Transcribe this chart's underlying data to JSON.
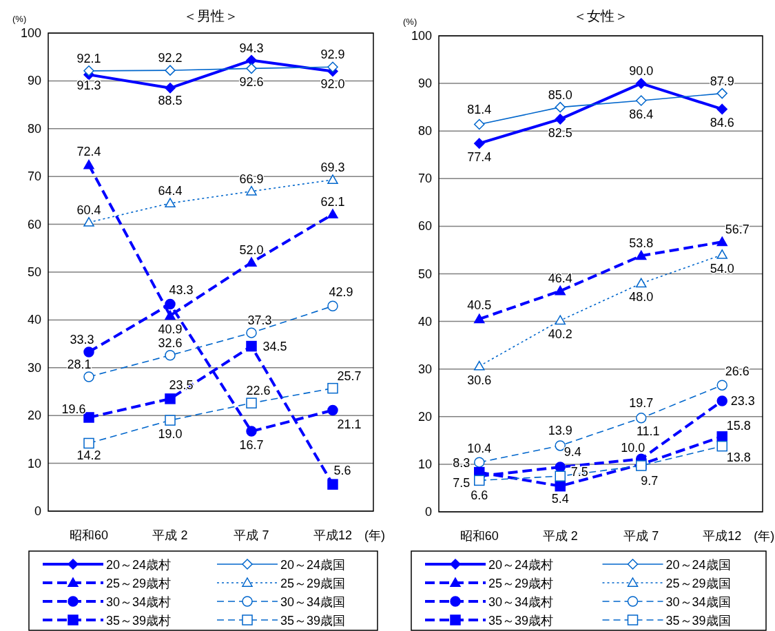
{
  "chart_data": [
    {
      "type": "line",
      "title": "＜男性＞",
      "ylabel": "(%)",
      "xlabel": "(年)",
      "categories": [
        "昭和60",
        "平成 2",
        "平成 7",
        "平成12"
      ],
      "ylim": [
        0,
        100
      ],
      "yticks": [
        0,
        10,
        20,
        30,
        40,
        50,
        60,
        70,
        80,
        90,
        100
      ],
      "grid": "y",
      "legend": "bottom",
      "series": [
        {
          "name": "20～24歳村",
          "color": "#0000ff",
          "marker": "diamond",
          "line_style": "solid",
          "values": [
            91.3,
            88.5,
            94.3,
            92.0
          ],
          "value_labels": [
            "91.3",
            "88.5",
            "94.3",
            "92.0"
          ]
        },
        {
          "name": "20～24歳国",
          "color": "#0066cc",
          "marker": "diamond",
          "line_style": "solid",
          "values": [
            92.1,
            92.2,
            92.6,
            92.9
          ],
          "value_labels": [
            "92.1",
            "92.2",
            "92.6",
            "92.9"
          ]
        },
        {
          "name": "25～29歳村",
          "color": "#0000ff",
          "marker": "triangle",
          "line_style": "dashed",
          "values": [
            72.4,
            40.9,
            52.0,
            62.1
          ],
          "value_labels": [
            "72.4",
            "40.9",
            "52.0",
            "62.1"
          ]
        },
        {
          "name": "25～29歳国",
          "color": "#0066cc",
          "marker": "triangle",
          "line_style": "dotted",
          "values": [
            60.4,
            64.4,
            66.9,
            69.3
          ],
          "value_labels": [
            "60.4",
            "64.4",
            "66.9",
            "69.3"
          ]
        },
        {
          "name": "30～34歳村",
          "color": "#0000ff",
          "marker": "circle",
          "line_style": "dashed",
          "values": [
            33.3,
            43.3,
            16.7,
            21.1
          ],
          "value_labels": [
            "33.3",
            "43.3",
            "16.7",
            "21.1"
          ]
        },
        {
          "name": "30～34歳国",
          "color": "#0066cc",
          "marker": "circle",
          "line_style": "dashed",
          "values": [
            28.1,
            32.6,
            37.3,
            42.9
          ],
          "value_labels": [
            "28.1",
            "32.6",
            "37.3",
            "42.9"
          ]
        },
        {
          "name": "35～39歳村",
          "color": "#0000ff",
          "marker": "square",
          "line_style": "dashed",
          "values": [
            19.6,
            23.5,
            34.5,
            5.6
          ],
          "value_labels": [
            "19.6",
            "23.5",
            "34.5",
            "5.6"
          ]
        },
        {
          "name": "35～39歳国",
          "color": "#0066cc",
          "marker": "square",
          "line_style": "dashed",
          "values": [
            14.2,
            19.0,
            22.6,
            25.7
          ],
          "value_labels": [
            "14.2",
            "19.0",
            "22.6",
            "25.7"
          ]
        }
      ]
    },
    {
      "type": "line",
      "title": "＜女性＞",
      "ylabel": "(%)",
      "xlabel": "(年)",
      "categories": [
        "昭和60",
        "平成 2",
        "平成 7",
        "平成12"
      ],
      "ylim": [
        0,
        100
      ],
      "yticks": [
        0,
        10,
        20,
        30,
        40,
        50,
        60,
        70,
        80,
        90,
        100
      ],
      "grid": "y",
      "legend": "bottom",
      "series": [
        {
          "name": "20～24歳村",
          "color": "#0000ff",
          "marker": "diamond",
          "line_style": "solid",
          "values": [
            77.4,
            82.5,
            90.0,
            84.6
          ],
          "value_labels": [
            "77.4",
            "82.5",
            "90.0",
            "84.6"
          ]
        },
        {
          "name": "20～24歳国",
          "color": "#0066cc",
          "marker": "diamond",
          "line_style": "solid",
          "values": [
            81.4,
            85.0,
            86.4,
            87.9
          ],
          "value_labels": [
            "81.4",
            "85.0",
            "86.4",
            "87.9"
          ]
        },
        {
          "name": "25～29歳村",
          "color": "#0000ff",
          "marker": "triangle",
          "line_style": "dashed",
          "values": [
            40.5,
            46.4,
            53.8,
            56.7
          ],
          "value_labels": [
            "40.5",
            "46.4",
            "53.8",
            "56.7"
          ]
        },
        {
          "name": "25～29歳国",
          "color": "#0066cc",
          "marker": "triangle",
          "line_style": "dotted",
          "values": [
            30.6,
            40.2,
            48.0,
            54.0
          ],
          "value_labels": [
            "30.6",
            "40.2",
            "48.0",
            "54.0"
          ]
        },
        {
          "name": "30～34歳村",
          "color": "#0000ff",
          "marker": "circle",
          "line_style": "dashed",
          "values": [
            7.5,
            9.4,
            11.1,
            23.3
          ],
          "value_labels": [
            "7.5",
            "9.4",
            "11.1",
            "23.3"
          ]
        },
        {
          "name": "30～34歳国",
          "color": "#0066cc",
          "marker": "circle",
          "line_style": "dashed",
          "values": [
            10.4,
            13.9,
            19.7,
            26.6
          ],
          "value_labels": [
            "10.4",
            "13.9",
            "19.7",
            "26.6"
          ]
        },
        {
          "name": "35～39歳村",
          "color": "#0000ff",
          "marker": "square",
          "line_style": "dashed",
          "values": [
            8.3,
            5.4,
            10.0,
            15.8
          ],
          "value_labels": [
            "8.3",
            "5.4",
            "10.0",
            "15.8"
          ]
        },
        {
          "name": "35～39歳国",
          "color": "#0066cc",
          "marker": "square",
          "line_style": "dashed",
          "values": [
            6.6,
            7.5,
            9.7,
            13.8
          ],
          "value_labels": [
            "6.6",
            "7.5",
            "9.7",
            "13.8"
          ]
        }
      ]
    }
  ]
}
